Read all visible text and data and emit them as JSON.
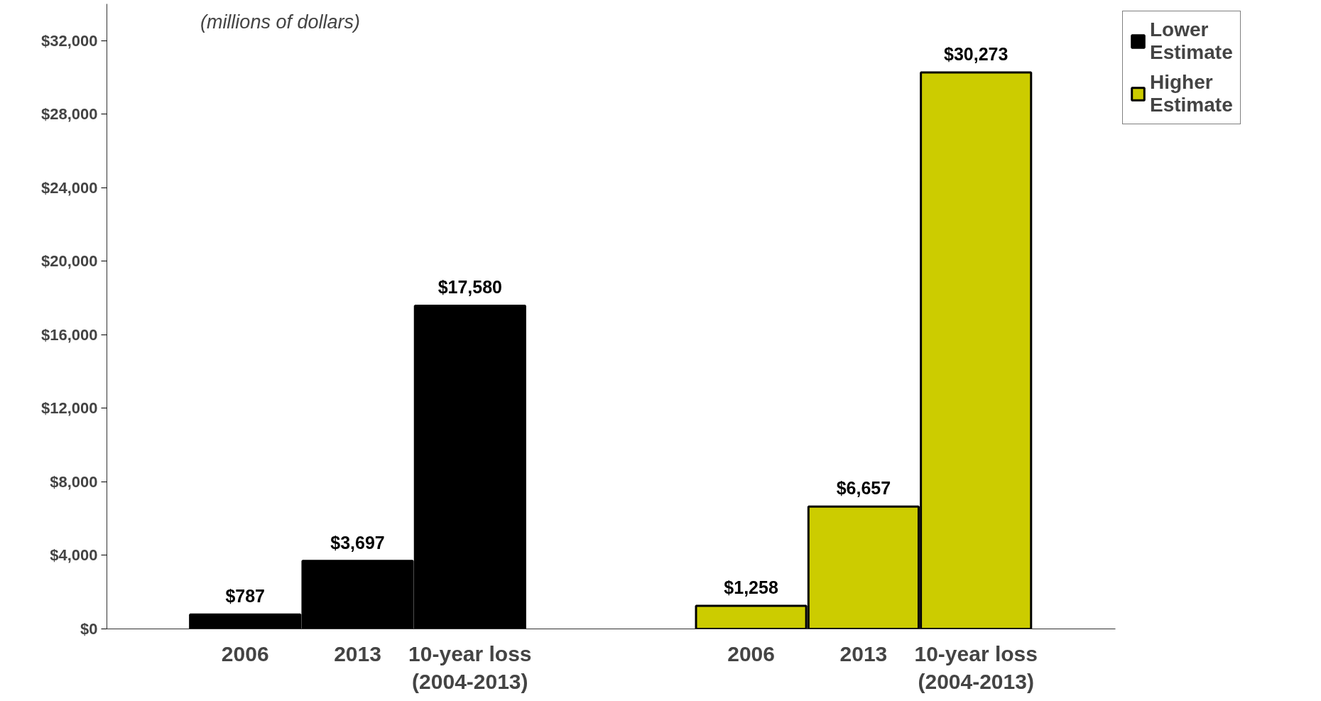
{
  "chart_data": {
    "type": "bar",
    "categories": [
      "2006",
      "2013",
      "10-year loss\n(2004-2013)",
      "2006",
      "2013",
      "10-year loss\n(2004-2013)"
    ],
    "series": [
      {
        "name": "Lower Estimate",
        "color": "#000000",
        "values": [
          787,
          3697,
          17580,
          null,
          null,
          null
        ],
        "value_labels": [
          "$787",
          "$3,697",
          "$17,580",
          null,
          null,
          null
        ]
      },
      {
        "name": "Higher Estimate",
        "color": "#cccc00",
        "values": [
          null,
          null,
          null,
          1258,
          6657,
          30273
        ],
        "value_labels": [
          null,
          null,
          null,
          "$1,258",
          "$6,657",
          "$30,273"
        ]
      }
    ],
    "ylim": [
      0,
      34000
    ],
    "yticks": [
      {
        "value": 0,
        "label": "$0"
      },
      {
        "value": 4000,
        "label": "$4,000"
      },
      {
        "value": 8000,
        "label": "$8,000"
      },
      {
        "value": 12000,
        "label": "$12,000"
      },
      {
        "value": 16000,
        "label": "$16,000"
      },
      {
        "value": 20000,
        "label": "$20,000"
      },
      {
        "value": 24000,
        "label": "$24,000"
      },
      {
        "value": 28000,
        "label": "$28,000"
      },
      {
        "value": 32000,
        "label": "$32,000"
      }
    ],
    "annotations": [
      "(millions of dollars)"
    ],
    "legend": "right",
    "grid": false
  }
}
